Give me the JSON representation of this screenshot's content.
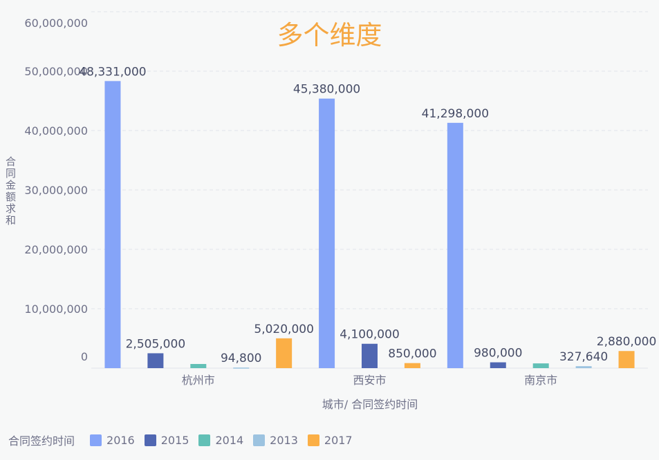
{
  "chart_data": {
    "type": "bar",
    "title": "多个维度",
    "xlabel": "城市/ 合同签约时间",
    "ylabel": "合同金额求和",
    "ylim": [
      0,
      60000000
    ],
    "yticks": [
      "0",
      "10,000,000",
      "20,000,000",
      "30,000,000",
      "40,000,000",
      "50,000,000",
      "60,000,000"
    ],
    "grid": true,
    "legend_title": "合同签约时间",
    "legend_position": "bottom-left",
    "categories": [
      "杭州市",
      "西安市",
      "南京市"
    ],
    "series": [
      {
        "name": "2016",
        "color": "#85a4f8"
      },
      {
        "name": "2015",
        "color": "#5067b2"
      },
      {
        "name": "2014",
        "color": "#62c0b6"
      },
      {
        "name": "2013",
        "color": "#9cc3e0"
      },
      {
        "name": "2017",
        "color": "#fbaf46"
      }
    ],
    "bars": [
      {
        "category": "杭州市",
        "series": "2016",
        "value": 48331000,
        "label": "48,331,000"
      },
      {
        "category": "杭州市",
        "series": "2015",
        "value": 2505000,
        "label": "2,505,000"
      },
      {
        "category": "杭州市",
        "series": "2014",
        "value": 700000,
        "label": ""
      },
      {
        "category": "杭州市",
        "series": "2013",
        "value": 94800,
        "label": "94,800"
      },
      {
        "category": "杭州市",
        "series": "2017",
        "value": 5020000,
        "label": "5,020,000"
      },
      {
        "category": "西安市",
        "series": "2016",
        "value": 45380000,
        "label": "45,380,000"
      },
      {
        "category": "西安市",
        "series": "2015",
        "value": 4100000,
        "label": "4,100,000"
      },
      {
        "category": "西安市",
        "series": "2017",
        "value": 850000,
        "label": "850,000"
      },
      {
        "category": "南京市",
        "series": "2016",
        "value": 41298000,
        "label": "41,298,000"
      },
      {
        "category": "南京市",
        "series": "2015",
        "value": 980000,
        "label": "980,000"
      },
      {
        "category": "南京市",
        "series": "2014",
        "value": 800000,
        "label": ""
      },
      {
        "category": "南京市",
        "series": "2013",
        "value": 327640,
        "label": "327,640"
      },
      {
        "category": "南京市",
        "series": "2017",
        "value": 2880000,
        "label": "2,880,000"
      }
    ]
  }
}
